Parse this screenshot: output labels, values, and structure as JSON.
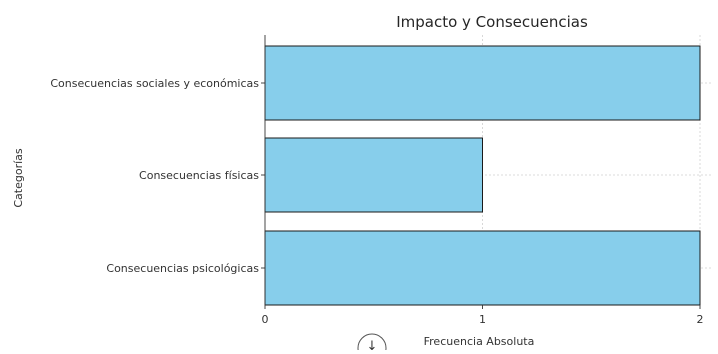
{
  "chart_data": {
    "type": "bar",
    "orientation": "horizontal",
    "title": "Impacto y Consecuencias",
    "xlabel": "Frecuencia Absoluta",
    "ylabel": "Categorías",
    "categories": [
      "Consecuencias psicológicas",
      "Consecuencias físicas",
      "Consecuencias sociales y económicas"
    ],
    "values": [
      2,
      1,
      2
    ],
    "xlim": [
      0,
      2
    ],
    "xticks": [
      "0",
      "1",
      "2"
    ],
    "grid": true,
    "bar_color": "#87ceeb",
    "edge_color": "#1a1a1a"
  },
  "overlay": {
    "cursor_icon": "scroll-cursor-icon"
  }
}
